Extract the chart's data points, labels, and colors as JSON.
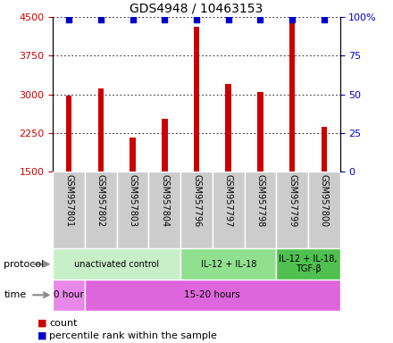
{
  "title": "GDS4948 / 10463153",
  "samples": [
    "GSM957801",
    "GSM957802",
    "GSM957803",
    "GSM957804",
    "GSM957796",
    "GSM957797",
    "GSM957798",
    "GSM957799",
    "GSM957800"
  ],
  "bar_values": [
    2980,
    3120,
    2160,
    2520,
    4310,
    3200,
    3050,
    4430,
    2370
  ],
  "ylim_left": [
    1500,
    4500
  ],
  "ylim_right": [
    0,
    100
  ],
  "yticks_left": [
    1500,
    2250,
    3000,
    3750,
    4500
  ],
  "yticks_right": [
    0,
    25,
    50,
    75,
    100
  ],
  "bar_color": "#cc0000",
  "dot_color": "#0000cc",
  "dot_yval": 4455,
  "protocol_groups": [
    {
      "label": "unactivated control",
      "start": 0,
      "end": 4,
      "color": "#c8f0c8"
    },
    {
      "label": "IL-12 + IL-18",
      "start": 4,
      "end": 7,
      "color": "#90e090"
    },
    {
      "label": "IL-12 + IL-18,\nTGF-β",
      "start": 7,
      "end": 9,
      "color": "#50c050"
    }
  ],
  "time_groups": [
    {
      "label": "0 hour",
      "start": 0,
      "end": 1,
      "color": "#e888e8"
    },
    {
      "label": "15-20 hours",
      "start": 1,
      "end": 9,
      "color": "#dd66dd"
    }
  ],
  "protocol_label": "protocol",
  "time_label": "time",
  "legend_count_label": "count",
  "legend_pct_label": "percentile rank within the sample",
  "left_axis_color": "#cc0000",
  "right_axis_color": "#0000cc",
  "sample_box_color": "#cccccc",
  "title_fontsize": 10,
  "tick_fontsize": 8,
  "bar_width": 0.18
}
